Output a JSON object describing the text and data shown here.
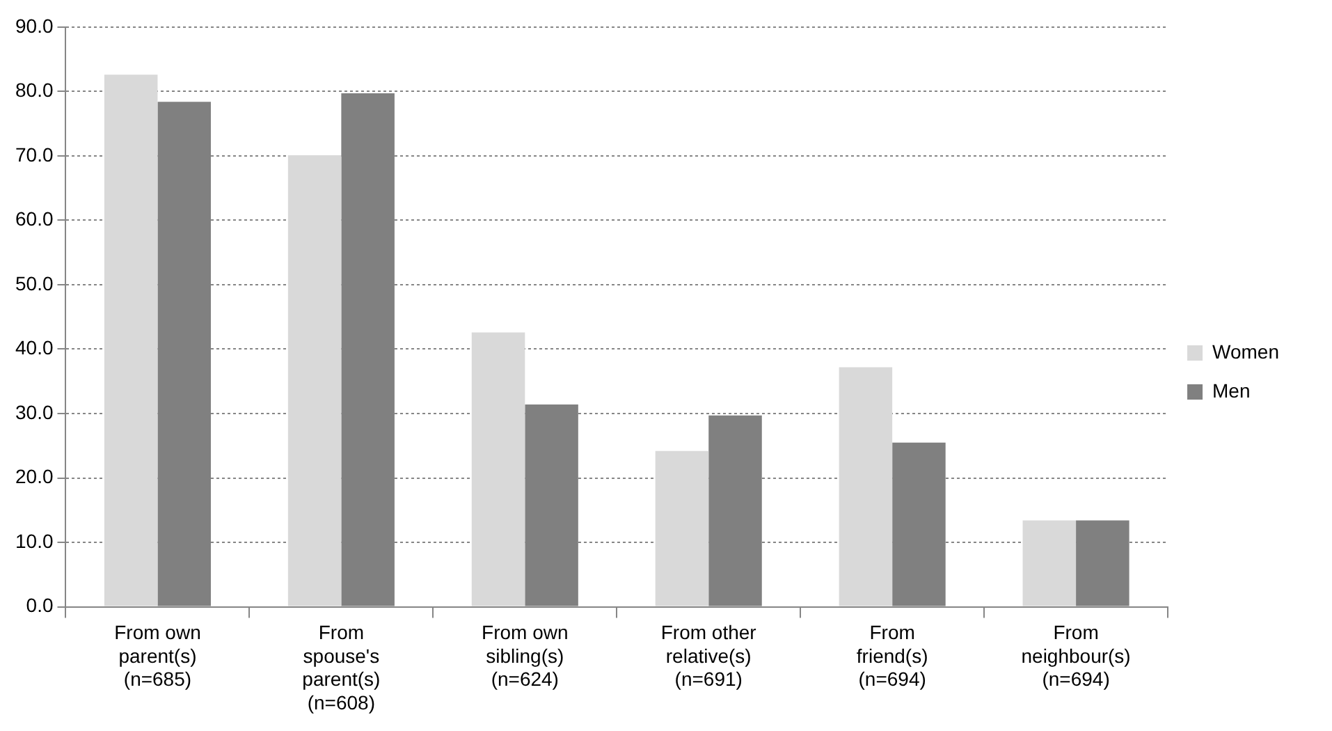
{
  "chart_data": {
    "type": "bar",
    "categories": [
      "From own parent(s) (n=685)",
      "From spouse's parent(s) (n=608)",
      "From own sibling(s) (n=624)",
      "From other relative(s) (n=691)",
      "From friend(s) (n=694)",
      "From neighbour(s) (n=694)"
    ],
    "series": [
      {
        "name": "Women",
        "color": "#d9d9d9",
        "values": [
          82.6,
          70.1,
          42.6,
          24.2,
          37.2,
          13.4
        ]
      },
      {
        "name": "Men",
        "color": "#808080",
        "values": [
          78.4,
          79.7,
          31.4,
          29.7,
          25.5,
          13.4
        ]
      }
    ],
    "ylim": [
      0,
      90
    ],
    "yticks": [
      {
        "value": 0,
        "label": "0.0"
      },
      {
        "value": 10,
        "label": "10.0"
      },
      {
        "value": 20,
        "label": "20.0"
      },
      {
        "value": 30,
        "label": "30.0"
      },
      {
        "value": 40,
        "label": "40.0"
      },
      {
        "value": 50,
        "label": "50.0"
      },
      {
        "value": 60,
        "label": "60.0"
      },
      {
        "value": 70,
        "label": "70.0"
      },
      {
        "value": 80,
        "label": "80.0"
      },
      {
        "value": 90,
        "label": "90.0"
      }
    ],
    "grid": "y",
    "legend": "right"
  }
}
